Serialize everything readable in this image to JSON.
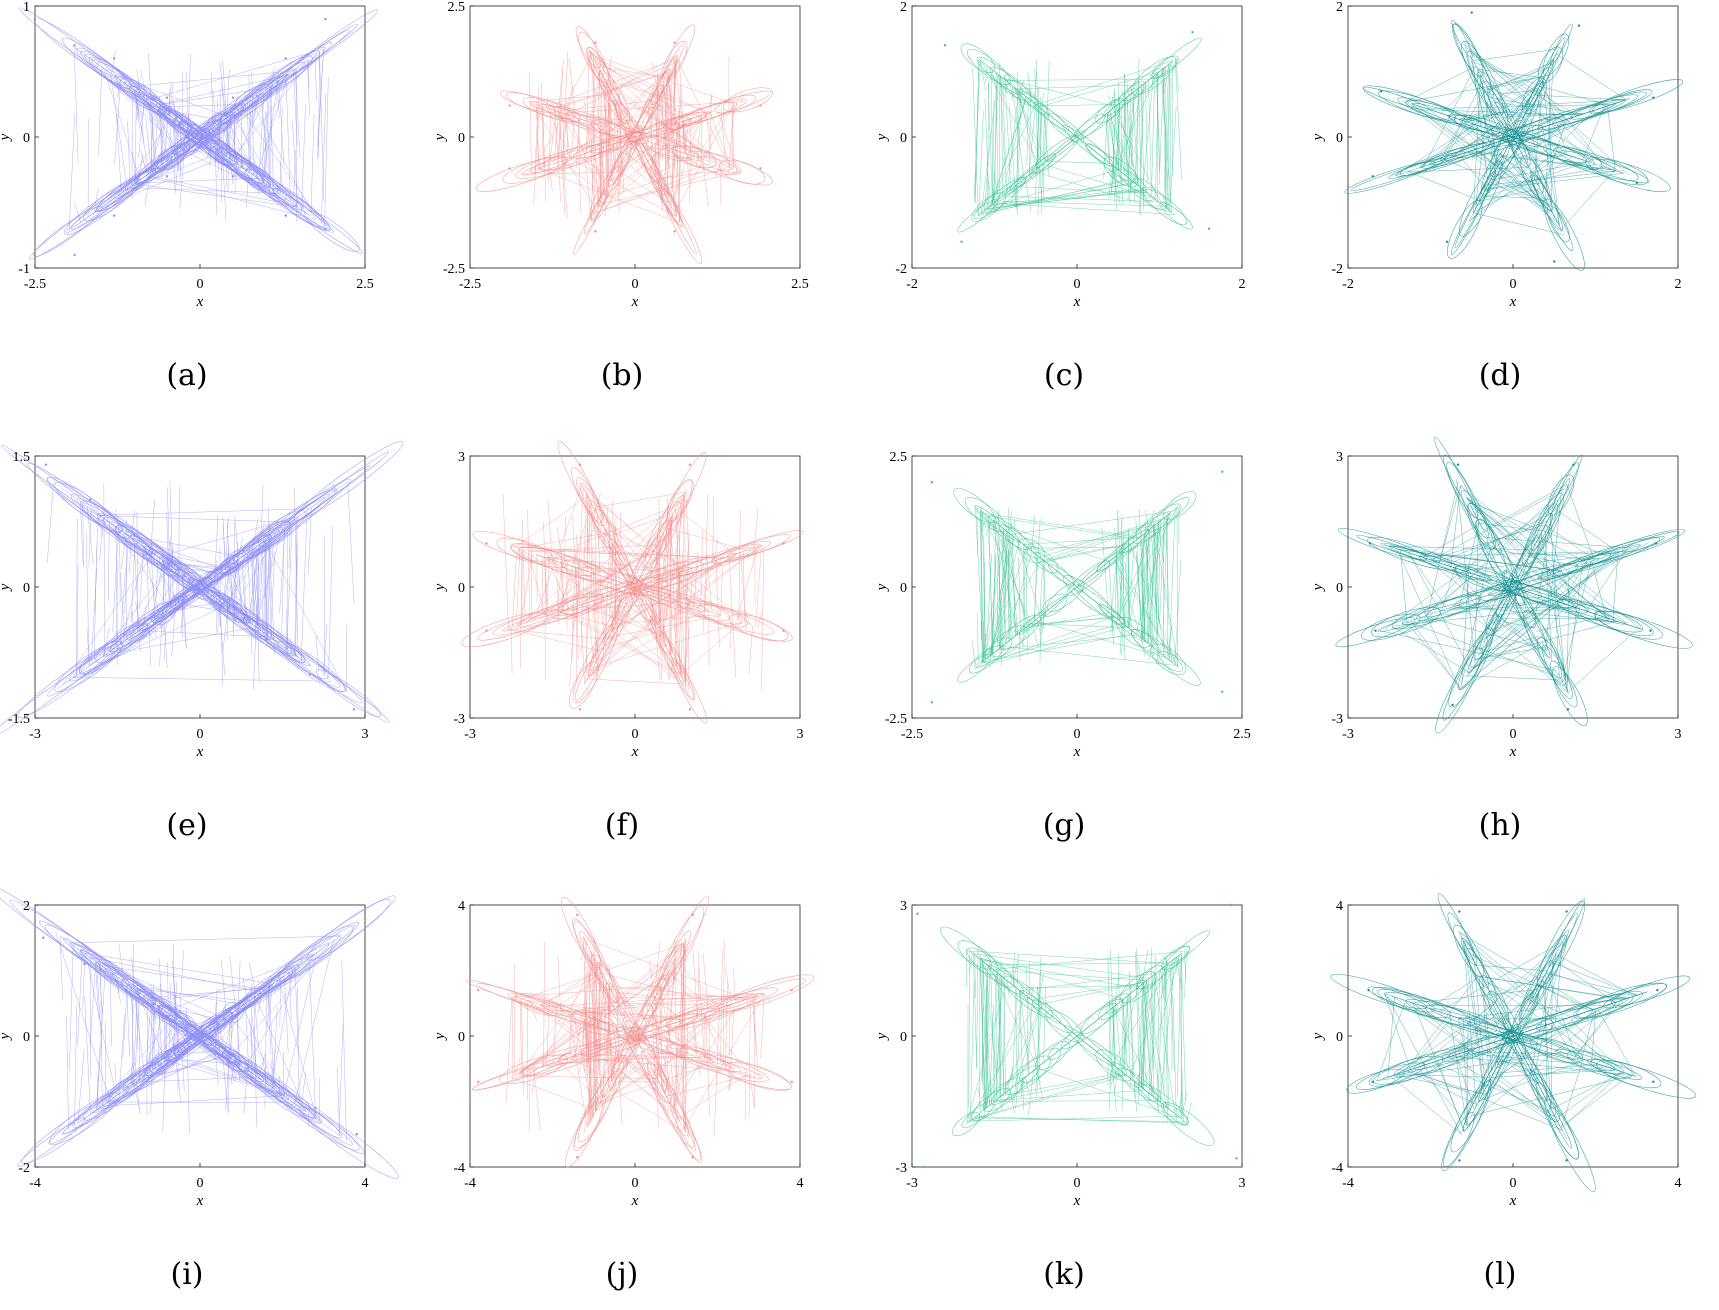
{
  "figure": {
    "colors": {
      "blue": "#8f8ff5",
      "pink": "#f58c8c",
      "green": "#3cc296",
      "teal": "#149191"
    }
  },
  "chart_data": [
    {
      "type": "scatter",
      "caption": "(a)",
      "color": "#8f8ff5",
      "shape": "butterfly",
      "xlim": [
        -2.5,
        2.5
      ],
      "ylim": [
        -1,
        1
      ],
      "xticks": [
        "-2.5",
        "0",
        "2.5"
      ],
      "yticks": [
        "-1",
        "0",
        "1"
      ],
      "xlabel": "x",
      "ylabel": "y",
      "lobes": 2,
      "spread": 0.8,
      "vlines": true,
      "series": [
        {
          "x": [
            -1.9,
            -1.3,
            -0.5,
            0.5,
            1.3,
            1.9,
            1.9,
            1.3,
            0.5,
            -0.5,
            -1.3,
            -1.9
          ],
          "y": [
            0.7,
            0.6,
            0.3,
            -0.3,
            -0.6,
            -0.7,
            0.9,
            0.6,
            0.3,
            -0.3,
            -0.6,
            -0.9
          ]
        }
      ]
    },
    {
      "type": "scatter",
      "caption": "(b)",
      "color": "#f58c8c",
      "shape": "star",
      "xlim": [
        -2.5,
        2.5
      ],
      "ylim": [
        -2.5,
        2.5
      ],
      "xticks": [
        "-2.5",
        "0",
        "2.5"
      ],
      "yticks": [
        "-2.5",
        "0",
        "2.5"
      ],
      "xlabel": "x",
      "ylabel": "y",
      "lobes": 8,
      "spread": 0.78,
      "vlines": true,
      "series": [
        {
          "x": [
            -1.9,
            -0.6,
            0.6,
            1.9,
            1.9,
            0.6,
            -0.6,
            -1.9
          ],
          "y": [
            0.6,
            1.8,
            1.8,
            0.6,
            -0.6,
            -1.8,
            -1.8,
            -0.6
          ]
        }
      ]
    },
    {
      "type": "scatter",
      "caption": "(c)",
      "color": "#3cc296",
      "shape": "x-box",
      "xlim": [
        -2,
        2
      ],
      "ylim": [
        -2,
        2
      ],
      "xticks": [
        "-2",
        "0",
        "2"
      ],
      "yticks": [
        "-2",
        "0",
        "2"
      ],
      "xlabel": "x",
      "ylabel": "y",
      "lobes": 4,
      "spread": 0.85,
      "vlines": true,
      "series": [
        {
          "x": [
            -1.6,
            1.4,
            1.6,
            -1.4
          ],
          "y": [
            1.4,
            1.6,
            -1.4,
            -1.6
          ]
        }
      ]
    },
    {
      "type": "scatter",
      "caption": "(d)",
      "color": "#149191",
      "shape": "star",
      "xlim": [
        -2,
        2
      ],
      "ylim": [
        -2,
        2
      ],
      "xticks": [
        "-2",
        "0",
        "2"
      ],
      "yticks": [
        "-2",
        "0",
        "2"
      ],
      "xlabel": "x",
      "ylabel": "y",
      "lobes": 8,
      "spread": 0.85,
      "vlines": false,
      "series": [
        {
          "x": [
            -1.6,
            -0.5,
            0.8,
            1.7,
            1.5,
            0.5,
            -0.8,
            -1.7
          ],
          "y": [
            0.7,
            1.9,
            1.7,
            0.6,
            -0.7,
            -1.9,
            -1.6,
            -0.6
          ]
        }
      ]
    },
    {
      "type": "scatter",
      "caption": "(e)",
      "color": "#8f8ff5",
      "shape": "butterfly",
      "xlim": [
        -3,
        3
      ],
      "ylim": [
        -1.5,
        1.5
      ],
      "xticks": [
        "-3",
        "0",
        "3"
      ],
      "yticks": [
        "-1.5",
        "0",
        "1.5"
      ],
      "xlabel": "x",
      "ylabel": "y",
      "lobes": 2,
      "spread": 0.9,
      "vlines": true,
      "series": [
        {
          "x": [
            -2.8,
            -2.0,
            -1.2,
            -0.4,
            0.4,
            1.2,
            2.0,
            2.8
          ],
          "y": [
            1.4,
            1.0,
            0.6,
            0.2,
            -0.2,
            -0.6,
            -1.0,
            -1.4
          ]
        }
      ]
    },
    {
      "type": "scatter",
      "caption": "(f)",
      "color": "#f58c8c",
      "shape": "star",
      "xlim": [
        -3,
        3
      ],
      "ylim": [
        -3,
        3
      ],
      "xticks": [
        "-3",
        "0",
        "3"
      ],
      "yticks": [
        "-3",
        "0",
        "3"
      ],
      "xlabel": "x",
      "ylabel": "y",
      "lobes": 8,
      "spread": 0.9,
      "vlines": true,
      "series": [
        {
          "x": [
            -2.7,
            -1.0,
            1.0,
            2.7,
            2.7,
            1.0,
            -1.0,
            -2.7
          ],
          "y": [
            1.0,
            2.8,
            2.8,
            1.0,
            -1.0,
            -2.8,
            -2.8,
            -1.0
          ]
        }
      ]
    },
    {
      "type": "scatter",
      "caption": "(g)",
      "color": "#3cc296",
      "shape": "x-box",
      "xlim": [
        -2.5,
        2.5
      ],
      "ylim": [
        -2.5,
        2.5
      ],
      "xticks": [
        "-2.5",
        "0",
        "2.5"
      ],
      "yticks": [
        "-2.5",
        "0",
        "2.5"
      ],
      "xlabel": "x",
      "ylabel": "y",
      "lobes": 4,
      "spread": 0.88,
      "vlines": true,
      "series": [
        {
          "x": [
            -2.2,
            2.2,
            2.2,
            -2.2
          ],
          "y": [
            2.0,
            2.2,
            -2.0,
            -2.2
          ]
        }
      ]
    },
    {
      "type": "scatter",
      "caption": "(h)",
      "color": "#149191",
      "shape": "star",
      "xlim": [
        -3,
        3
      ],
      "ylim": [
        -3,
        3
      ],
      "xticks": [
        "-3",
        "0",
        "3"
      ],
      "yticks": [
        "-3",
        "0",
        "3"
      ],
      "xlabel": "x",
      "ylabel": "y",
      "lobes": 8,
      "spread": 0.95,
      "vlines": false,
      "series": [
        {
          "x": [
            -2.6,
            -1.0,
            1.1,
            2.6,
            2.5,
            1.0,
            -1.1,
            -2.5
          ],
          "y": [
            1.0,
            2.8,
            2.8,
            1.0,
            -1.0,
            -2.8,
            -2.7,
            -1.0
          ]
        }
      ]
    },
    {
      "type": "scatter",
      "caption": "(i)",
      "color": "#8f8ff5",
      "shape": "butterfly",
      "xlim": [
        -4,
        4
      ],
      "ylim": [
        -2,
        2
      ],
      "xticks": [
        "-4",
        "0",
        "4"
      ],
      "yticks": [
        "-2",
        "0",
        "2"
      ],
      "xlabel": "x",
      "ylabel": "y",
      "lobes": 2,
      "spread": 0.9,
      "vlines": true,
      "series": [
        {
          "x": [
            -3.8,
            -2.8,
            -1.8,
            -0.8,
            0.8,
            1.8,
            2.8,
            3.8
          ],
          "y": [
            1.5,
            1.1,
            0.7,
            0.3,
            -0.3,
            -0.7,
            -1.1,
            -1.5
          ]
        }
      ]
    },
    {
      "type": "scatter",
      "caption": "(j)",
      "color": "#f58c8c",
      "shape": "star",
      "xlim": [
        -4,
        4
      ],
      "ylim": [
        -4,
        4
      ],
      "xticks": [
        "-4",
        "0",
        "4"
      ],
      "yticks": [
        "-4",
        "0",
        "4"
      ],
      "xlabel": "x",
      "ylabel": "y",
      "lobes": 8,
      "spread": 0.9,
      "vlines": true,
      "series": [
        {
          "x": [
            -3.8,
            -1.4,
            1.4,
            3.8,
            3.8,
            1.4,
            -1.4,
            -3.8
          ],
          "y": [
            1.4,
            3.7,
            3.7,
            1.4,
            -1.4,
            -3.7,
            -3.7,
            -1.4
          ]
        }
      ]
    },
    {
      "type": "scatter",
      "caption": "(k)",
      "color": "#3cc296",
      "shape": "x-box",
      "xlim": [
        -3,
        3
      ],
      "ylim": [
        -3,
        3
      ],
      "xticks": [
        "-3",
        "0",
        "3"
      ],
      "yticks": [
        "-3",
        "0",
        "3"
      ],
      "xlabel": "x",
      "ylabel": "y",
      "lobes": 4,
      "spread": 0.95,
      "vlines": true,
      "series": [
        {
          "x": [
            -2.9,
            2.8,
            2.9,
            -2.8
          ],
          "y": [
            2.8,
            3.0,
            -2.8,
            -3.0
          ]
        }
      ]
    },
    {
      "type": "scatter",
      "caption": "(l)",
      "color": "#149191",
      "shape": "star",
      "xlim": [
        -4,
        4
      ],
      "ylim": [
        -4,
        4
      ],
      "xticks": [
        "-4",
        "0",
        "4"
      ],
      "yticks": [
        "-4",
        "0",
        "4"
      ],
      "xlabel": "x",
      "ylabel": "y",
      "lobes": 8,
      "spread": 0.95,
      "vlines": false,
      "series": [
        {
          "x": [
            -3.5,
            -1.3,
            1.3,
            3.5,
            3.4,
            1.3,
            -1.3,
            -3.4
          ],
          "y": [
            1.4,
            3.8,
            3.8,
            1.4,
            -1.4,
            -3.8,
            -3.8,
            -1.4
          ]
        }
      ]
    }
  ]
}
